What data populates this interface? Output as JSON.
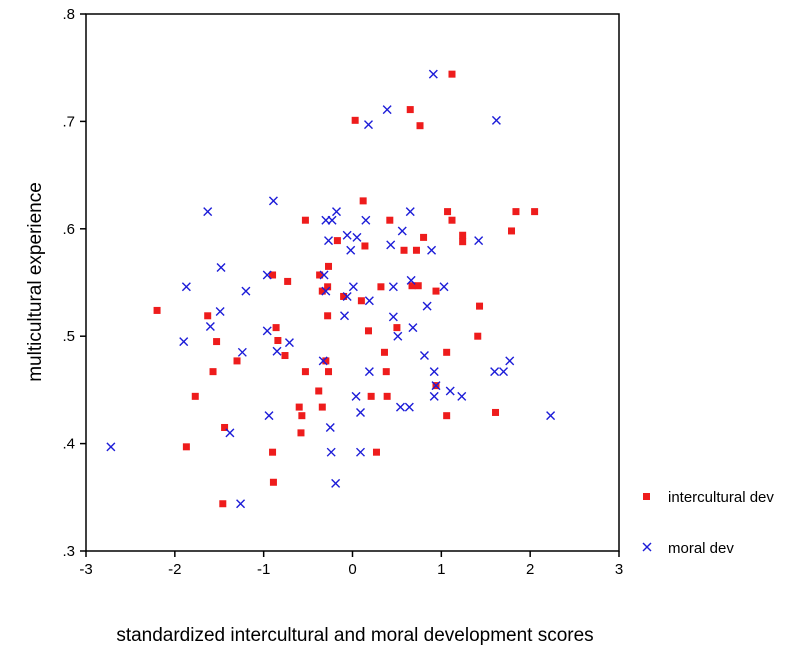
{
  "chart_data": {
    "type": "scatter",
    "title": "",
    "xlabel": "standardized intercultural and moral development scores",
    "ylabel": "multicultural experience",
    "xlim": [
      -3,
      3
    ],
    "ylim": [
      0.3,
      0.8
    ],
    "x_ticks": [
      -3,
      -2,
      -1,
      0,
      1,
      2,
      3
    ],
    "x_tick_labels": [
      "-3",
      "-2",
      "-1",
      "0",
      "1",
      "2",
      "3"
    ],
    "y_ticks": [
      0.3,
      0.4,
      0.5,
      0.6,
      0.7,
      0.8
    ],
    "y_tick_labels": [
      ".3",
      ".4",
      ".5",
      ".6",
      ".7",
      ".8"
    ],
    "grid": false,
    "legend_position": "right",
    "series": [
      {
        "name": "intercultural dev",
        "marker": "square",
        "color": "#ee1c1c",
        "points": [
          [
            1.12,
            0.744
          ],
          [
            0.03,
            0.701
          ],
          [
            0.65,
            0.711
          ],
          [
            0.76,
            0.696
          ],
          [
            0.12,
            0.626
          ],
          [
            -0.53,
            0.608
          ],
          [
            0.42,
            0.608
          ],
          [
            1.07,
            0.616
          ],
          [
            1.12,
            0.608
          ],
          [
            1.84,
            0.616
          ],
          [
            2.05,
            0.616
          ],
          [
            1.24,
            0.594
          ],
          [
            1.24,
            0.588
          ],
          [
            1.79,
            0.598
          ],
          [
            0.8,
            0.592
          ],
          [
            -0.17,
            0.589
          ],
          [
            0.14,
            0.584
          ],
          [
            0.58,
            0.58
          ],
          [
            0.72,
            0.58
          ],
          [
            -0.27,
            0.565
          ],
          [
            -0.37,
            0.557
          ],
          [
            -0.9,
            0.557
          ],
          [
            -0.73,
            0.551
          ],
          [
            0.67,
            0.547
          ],
          [
            0.74,
            0.547
          ],
          [
            0.32,
            0.546
          ],
          [
            -0.28,
            0.546
          ],
          [
            0.94,
            0.542
          ],
          [
            -0.34,
            0.542
          ],
          [
            -0.1,
            0.537
          ],
          [
            0.1,
            0.533
          ],
          [
            1.43,
            0.528
          ],
          [
            -2.2,
            0.524
          ],
          [
            -1.63,
            0.519
          ],
          [
            -0.28,
            0.519
          ],
          [
            0.5,
            0.508
          ],
          [
            0.18,
            0.505
          ],
          [
            -0.86,
            0.508
          ],
          [
            -1.53,
            0.495
          ],
          [
            -0.84,
            0.496
          ],
          [
            1.41,
            0.5
          ],
          [
            -0.76,
            0.482
          ],
          [
            -1.3,
            0.477
          ],
          [
            0.36,
            0.485
          ],
          [
            1.06,
            0.485
          ],
          [
            -0.3,
            0.477
          ],
          [
            -1.57,
            0.467
          ],
          [
            -0.53,
            0.467
          ],
          [
            -0.27,
            0.467
          ],
          [
            0.38,
            0.467
          ],
          [
            -1.77,
            0.444
          ],
          [
            -0.38,
            0.449
          ],
          [
            0.21,
            0.444
          ],
          [
            0.39,
            0.444
          ],
          [
            0.94,
            0.454
          ],
          [
            -0.6,
            0.434
          ],
          [
            -0.34,
            0.434
          ],
          [
            -0.57,
            0.426
          ],
          [
            1.06,
            0.426
          ],
          [
            1.61,
            0.429
          ],
          [
            -1.44,
            0.415
          ],
          [
            -0.58,
            0.41
          ],
          [
            -1.87,
            0.397
          ],
          [
            -0.9,
            0.392
          ],
          [
            0.27,
            0.392
          ],
          [
            -0.89,
            0.364
          ],
          [
            -1.46,
            0.344
          ]
        ]
      },
      {
        "name": "moral dev",
        "marker": "x",
        "color": "#1c1cd8",
        "points": [
          [
            0.91,
            0.744
          ],
          [
            0.39,
            0.711
          ],
          [
            0.18,
            0.697
          ],
          [
            1.62,
            0.701
          ],
          [
            -1.63,
            0.616
          ],
          [
            -0.89,
            0.626
          ],
          [
            -0.18,
            0.616
          ],
          [
            -0.3,
            0.608
          ],
          [
            -0.23,
            0.608
          ],
          [
            0.15,
            0.608
          ],
          [
            0.65,
            0.616
          ],
          [
            -0.06,
            0.594
          ],
          [
            0.05,
            0.592
          ],
          [
            0.56,
            0.598
          ],
          [
            -0.27,
            0.589
          ],
          [
            1.42,
            0.589
          ],
          [
            -0.02,
            0.58
          ],
          [
            0.43,
            0.585
          ],
          [
            0.89,
            0.58
          ],
          [
            -1.48,
            0.564
          ],
          [
            -1.87,
            0.546
          ],
          [
            -0.96,
            0.557
          ],
          [
            -1.2,
            0.542
          ],
          [
            -0.32,
            0.557
          ],
          [
            0.66,
            0.552
          ],
          [
            -0.3,
            0.542
          ],
          [
            0.01,
            0.546
          ],
          [
            0.46,
            0.546
          ],
          [
            1.03,
            0.546
          ],
          [
            -0.06,
            0.537
          ],
          [
            0.19,
            0.533
          ],
          [
            0.84,
            0.528
          ],
          [
            -1.49,
            0.523
          ],
          [
            -0.09,
            0.519
          ],
          [
            0.46,
            0.518
          ],
          [
            -1.6,
            0.509
          ],
          [
            -0.96,
            0.505
          ],
          [
            0.51,
            0.5
          ],
          [
            0.68,
            0.508
          ],
          [
            -1.9,
            0.495
          ],
          [
            -0.71,
            0.494
          ],
          [
            -0.85,
            0.486
          ],
          [
            -1.24,
            0.485
          ],
          [
            0.81,
            0.482
          ],
          [
            1.77,
            0.477
          ],
          [
            -0.33,
            0.477
          ],
          [
            0.19,
            0.467
          ],
          [
            0.92,
            0.467
          ],
          [
            1.6,
            0.467
          ],
          [
            1.7,
            0.467
          ],
          [
            0.04,
            0.444
          ],
          [
            0.92,
            0.444
          ],
          [
            1.1,
            0.449
          ],
          [
            1.23,
            0.444
          ],
          [
            0.54,
            0.434
          ],
          [
            0.64,
            0.434
          ],
          [
            -0.94,
            0.426
          ],
          [
            0.09,
            0.429
          ],
          [
            2.23,
            0.426
          ],
          [
            -1.38,
            0.41
          ],
          [
            -0.25,
            0.415
          ],
          [
            -2.72,
            0.397
          ],
          [
            -0.24,
            0.392
          ],
          [
            0.09,
            0.392
          ],
          [
            -0.19,
            0.363
          ],
          [
            -1.26,
            0.344
          ],
          [
            0.94,
            0.454
          ]
        ]
      }
    ]
  }
}
